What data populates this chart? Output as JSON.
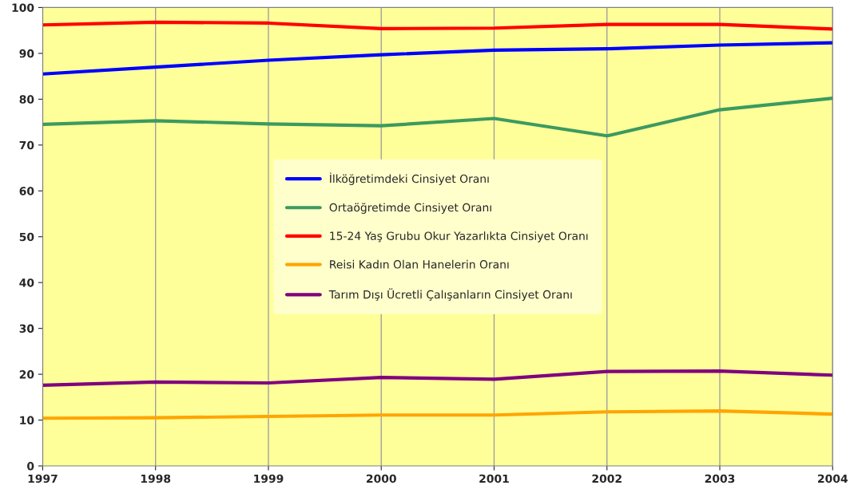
{
  "chart_data": {
    "type": "line",
    "x": [
      1997,
      1998,
      1999,
      2000,
      2001,
      2002,
      2003,
      2004
    ],
    "series": [
      {
        "name": "İlköğretimdeki Cinsiyet Oranı",
        "color": "#0000ff",
        "values": [
          85.5,
          87,
          88.5,
          89.7,
          90.7,
          91,
          91.8,
          92.3
        ]
      },
      {
        "name": "Ortaöğretimde Cinsiyet Oranı",
        "color": "#3c9a5f",
        "values": [
          74.5,
          75.3,
          74.6,
          74.2,
          75.8,
          72.0,
          77.7,
          80.2
        ]
      },
      {
        "name": "15-24 Yaş Grubu Okur Yazarlıkta Cinsiyet Oranı",
        "color": "#ff0000",
        "values": [
          96.2,
          96.8,
          96.6,
          95.4,
          95.5,
          96.3,
          96.3,
          95.3
        ]
      },
      {
        "name": "Reisi Kadın Olan Hanelerin Oranı",
        "color": "#ffa500",
        "values": [
          10.4,
          10.5,
          10.8,
          11.1,
          11.1,
          11.8,
          12.0,
          11.3
        ]
      },
      {
        "name": "Tarım Dışı Ücretli Çalışanların Cinsiyet Oranı",
        "color": "#800080",
        "values": [
          17.6,
          18.3,
          18.1,
          19.3,
          18.9,
          20.6,
          20.7,
          19.8
        ]
      }
    ],
    "xlim": [
      1997,
      2004
    ],
    "xticks": [
      1997,
      1998,
      1999,
      2000,
      2001,
      2002,
      2003,
      2004
    ],
    "ylim": [
      0,
      100
    ],
    "yticks": [
      0,
      10,
      20,
      30,
      40,
      50,
      60,
      70,
      80,
      90,
      100
    ],
    "grid": "x",
    "legend": "center",
    "marker": "none",
    "line_style": "solid"
  }
}
